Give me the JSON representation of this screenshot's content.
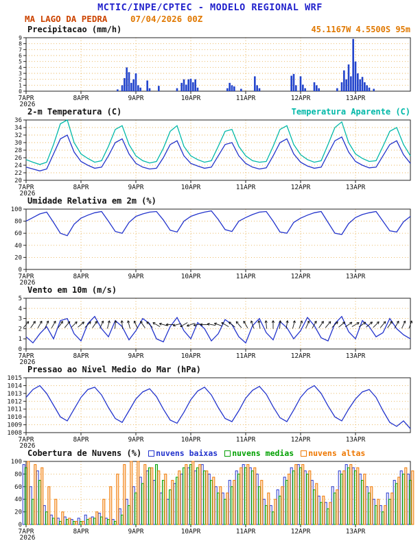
{
  "header": {
    "title": "MCTIC/INPE/CPTEC - MODELO REGIONAL WRF",
    "station": "MA LAGO DA PEDRA",
    "run_datetime": "07/04/2026 00Z",
    "location": "45.1167W 4.5500S 95m"
  },
  "colors": {
    "title_blue": "#2222cc",
    "station_red": "#cc4400",
    "run_orange": "#e07800",
    "location_orange": "#e07800",
    "grid_orange": "#e8b050",
    "frame": "#222222"
  },
  "x_axis": {
    "max_hours": 168,
    "year_label": "2026",
    "ticks": [
      {
        "hour": 0,
        "label": "7APR"
      },
      {
        "hour": 24,
        "label": "8APR"
      },
      {
        "hour": 48,
        "label": "9APR"
      },
      {
        "hour": 72,
        "label": "10APR"
      },
      {
        "hour": 96,
        "label": "11APR"
      },
      {
        "hour": 120,
        "label": "12APR"
      },
      {
        "hour": 144,
        "label": "13APR"
      }
    ]
  },
  "chart_data": [
    {
      "type": "bar",
      "title": "Precipitacao (mm/h)",
      "ylim": [
        0,
        9
      ],
      "ytick_step": 1,
      "series": [
        {
          "name": "precipitation",
          "color": "#2244cc",
          "points": [
            [
              40,
              0.3
            ],
            [
              42,
              1
            ],
            [
              43,
              2.2
            ],
            [
              44,
              4
            ],
            [
              45,
              3.2
            ],
            [
              46,
              1.4
            ],
            [
              47,
              2
            ],
            [
              48,
              3
            ],
            [
              49,
              1
            ],
            [
              50,
              0.6
            ],
            [
              53,
              1.8
            ],
            [
              54,
              0.5
            ],
            [
              58,
              0.9
            ],
            [
              66,
              0.5
            ],
            [
              68,
              1.4
            ],
            [
              69,
              2
            ],
            [
              70,
              1.1
            ],
            [
              71,
              2
            ],
            [
              72,
              2.1
            ],
            [
              73,
              1.5
            ],
            [
              74,
              2
            ],
            [
              75,
              0.6
            ],
            [
              88,
              0.5
            ],
            [
              89,
              1.4
            ],
            [
              90,
              1
            ],
            [
              91,
              0.8
            ],
            [
              94,
              0.4
            ],
            [
              100,
              2.5
            ],
            [
              101,
              1
            ],
            [
              102,
              0.5
            ],
            [
              116,
              2.6
            ],
            [
              117,
              2.9
            ],
            [
              118,
              1
            ],
            [
              120,
              2.5
            ],
            [
              121,
              1.1
            ],
            [
              122,
              0.5
            ],
            [
              126,
              1.5
            ],
            [
              127,
              1
            ],
            [
              128,
              0.5
            ],
            [
              136,
              0.5
            ],
            [
              138,
              1.5
            ],
            [
              139,
              3.5
            ],
            [
              140,
              2
            ],
            [
              141,
              4.5
            ],
            [
              142,
              2.5
            ],
            [
              143,
              8.8
            ],
            [
              144,
              5
            ],
            [
              145,
              3
            ],
            [
              146,
              2
            ],
            [
              147,
              2.4
            ],
            [
              148,
              1.5
            ],
            [
              149,
              1
            ],
            [
              150,
              0.6
            ],
            [
              152,
              0.4
            ]
          ]
        }
      ]
    },
    {
      "type": "line",
      "title": "2-m Temperatura (C)",
      "right_label": "Temperatura Aparente (C)",
      "ylim": [
        20,
        36
      ],
      "ytick_step": 2,
      "x_step_hours": 3,
      "series": [
        {
          "name": "2m-temperature",
          "color": "#2233cc",
          "values": [
            23.5,
            23,
            22.5,
            23,
            27,
            31,
            32,
            27.5,
            25,
            24,
            23.2,
            23.5,
            26.5,
            30,
            31,
            27,
            24.5,
            23.5,
            23,
            23.2,
            26,
            29.5,
            30.5,
            26.5,
            24.5,
            23.8,
            23.2,
            23.5,
            26.5,
            29.5,
            30,
            26.5,
            24.5,
            23.5,
            23,
            23.3,
            26.5,
            30,
            31,
            27,
            24.8,
            23.8,
            23.2,
            23.5,
            27,
            30.5,
            31.5,
            27.5,
            25,
            24,
            23.3,
            23.5,
            26.5,
            29.5,
            30.5,
            26.8,
            24.5
          ]
        },
        {
          "name": "apparent-temperature",
          "color": "#00b8a8",
          "values": [
            25.5,
            24.8,
            24.2,
            24.8,
            29.5,
            35,
            36,
            30,
            27,
            25.8,
            24.8,
            25.2,
            29,
            33.5,
            34.5,
            29.5,
            26.5,
            25.2,
            24.6,
            25,
            28.5,
            33,
            34.5,
            29,
            26.5,
            25.5,
            24.8,
            25.2,
            29,
            33,
            33.5,
            29,
            26.5,
            25.2,
            24.8,
            25,
            29,
            33.5,
            34.5,
            29.5,
            26.8,
            25.5,
            24.8,
            25.2,
            29.5,
            34,
            35.5,
            30,
            27,
            25.8,
            25,
            25.2,
            29,
            33,
            34,
            29.5,
            26.5
          ]
        }
      ]
    },
    {
      "type": "line",
      "title": "Umidade Relativa em 2m (%)",
      "ylim": [
        0,
        100
      ],
      "ytick_step": 20,
      "x_step_hours": 3,
      "series": [
        {
          "name": "relative-humidity-2m",
          "color": "#2233cc",
          "values": [
            80,
            86,
            92,
            95,
            78,
            60,
            56,
            75,
            85,
            90,
            94,
            96,
            80,
            63,
            60,
            78,
            88,
            92,
            95,
            96,
            82,
            65,
            62,
            80,
            88,
            92,
            95,
            97,
            83,
            66,
            63,
            80,
            86,
            91,
            95,
            96,
            80,
            62,
            60,
            78,
            85,
            90,
            94,
            96,
            78,
            60,
            58,
            76,
            86,
            91,
            94,
            96,
            80,
            64,
            62,
            79,
            88
          ]
        }
      ]
    },
    {
      "type": "line",
      "title": "Vento em 10m (m/s)",
      "ylim": [
        0,
        5
      ],
      "ytick_step": 1,
      "x_step_hours": 3,
      "series": [
        {
          "name": "wind-speed-10m",
          "color": "#2233cc",
          "values": [
            1.2,
            0.6,
            1.5,
            2.2,
            1,
            2.8,
            3,
            1.5,
            0.8,
            2.5,
            3.2,
            2,
            1.2,
            2.8,
            2.2,
            0.9,
            1.8,
            3,
            2.5,
            1,
            0.7,
            2.2,
            3.1,
            1.8,
            1,
            2.6,
            2,
            0.8,
            1.5,
            2.9,
            2.4,
            1.2,
            0.6,
            2.3,
            3,
            1.6,
            0.9,
            2.7,
            2.1,
            1,
            1.8,
            3.1,
            2.3,
            1.1,
            0.8,
            2.5,
            3.2,
            1.7,
            1,
            2.8,
            2.2,
            1.2,
            1.6,
            3,
            2,
            1.4,
            1
          ]
        }
      ],
      "barbs": {
        "y": 2.4,
        "color": "#111111",
        "dirs_deg": [
          50,
          55,
          60,
          65,
          60,
          55,
          50,
          45,
          40,
          45,
          55,
          65,
          75,
          85,
          95,
          105,
          115,
          125,
          135,
          150,
          165,
          180,
          195,
          210,
          200,
          190,
          180,
          170,
          160,
          150,
          140,
          130,
          120,
          110,
          100,
          95,
          90,
          85,
          80,
          75,
          70,
          65,
          60,
          55,
          50,
          45,
          40,
          35,
          30,
          35,
          40,
          45,
          50,
          55,
          60,
          65,
          70
        ]
      }
    },
    {
      "type": "line",
      "title": "Pressao ao Nivel Medio do Mar (hPa)",
      "ylim": [
        1008,
        1015
      ],
      "ytick_step": 1,
      "x_step_hours": 3,
      "series": [
        {
          "name": "mean-sea-level-pressure",
          "color": "#2233cc",
          "values": [
            1012.5,
            1013.5,
            1014,
            1013,
            1011.5,
            1010,
            1009.5,
            1011,
            1012.5,
            1013.5,
            1013.8,
            1012.8,
            1011.2,
            1009.8,
            1009.3,
            1010.8,
            1012.3,
            1013.2,
            1013.6,
            1012.6,
            1011,
            1009.6,
            1009.2,
            1010.6,
            1012.2,
            1013.3,
            1013.8,
            1012.8,
            1011.2,
            1009.8,
            1009.4,
            1010.8,
            1012.4,
            1013.4,
            1013.9,
            1012.9,
            1011.3,
            1009.9,
            1009.4,
            1010.9,
            1012.5,
            1013.5,
            1014,
            1013,
            1011.4,
            1010,
            1009.5,
            1011,
            1012.3,
            1013.2,
            1013.5,
            1012.5,
            1010.8,
            1009.3,
            1008.8,
            1009.5,
            1008.5
          ]
        }
      ]
    },
    {
      "type": "bar-multi",
      "title": "Cobertura de Nuvens (%)",
      "ylim": [
        0,
        100
      ],
      "ytick_step": 20,
      "x_step_hours": 3,
      "series": [
        {
          "name": "nuvens baixas",
          "color": "#2233cc",
          "fill": "",
          "values": [
            95,
            60,
            85,
            30,
            15,
            10,
            12,
            8,
            10,
            15,
            12,
            18,
            10,
            8,
            25,
            40,
            60,
            75,
            85,
            70,
            50,
            40,
            65,
            80,
            90,
            85,
            95,
            80,
            60,
            50,
            70,
            85,
            95,
            90,
            80,
            40,
            30,
            55,
            75,
            90,
            95,
            85,
            70,
            45,
            35,
            60,
            85,
            95,
            90,
            80,
            60,
            40,
            30,
            50,
            70,
            85,
            80
          ]
        },
        {
          "name": "nuvens medias",
          "color": "#00a000",
          "fill": "#8fdc8f",
          "values": [
            90,
            40,
            70,
            20,
            10,
            5,
            8,
            5,
            5,
            8,
            10,
            12,
            8,
            5,
            15,
            30,
            50,
            65,
            90,
            95,
            70,
            55,
            75,
            90,
            95,
            90,
            85,
            70,
            50,
            40,
            60,
            80,
            90,
            85,
            60,
            30,
            20,
            45,
            70,
            85,
            90,
            80,
            55,
            35,
            25,
            50,
            80,
            90,
            85,
            70,
            50,
            30,
            20,
            40,
            65,
            80,
            70
          ]
        },
        {
          "name": "nuvens altas",
          "color": "#ee7700",
          "fill": "#ffc489",
          "values": [
            100,
            95,
            90,
            60,
            40,
            20,
            10,
            5,
            5,
            10,
            20,
            40,
            60,
            80,
            95,
            100,
            100,
            95,
            90,
            85,
            80,
            70,
            85,
            95,
            100,
            95,
            85,
            75,
            60,
            50,
            70,
            90,
            95,
            90,
            70,
            50,
            40,
            60,
            80,
            95,
            95,
            85,
            65,
            45,
            35,
            55,
            85,
            95,
            90,
            80,
            60,
            40,
            30,
            50,
            75,
            90,
            85
          ]
        }
      ]
    }
  ]
}
